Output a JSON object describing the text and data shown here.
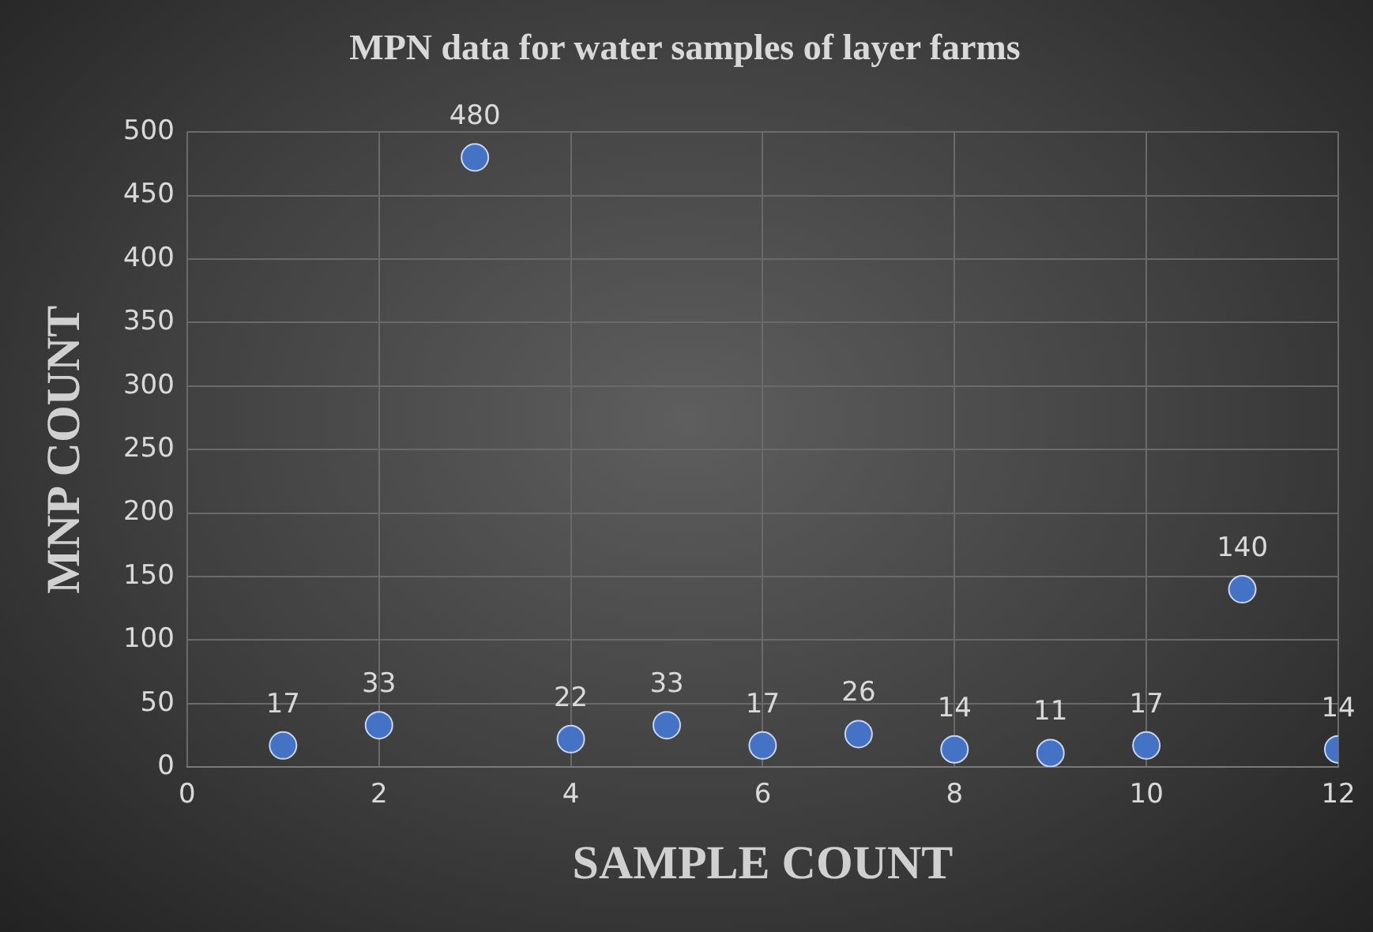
{
  "chart_data": {
    "type": "scatter",
    "title": "MPN data for water samples of layer farms",
    "xlabel": "SAMPLE COUNT",
    "ylabel": "MNP COUNT",
    "x": [
      1,
      2,
      3,
      4,
      5,
      6,
      7,
      8,
      9,
      10,
      11,
      12
    ],
    "values": [
      17,
      33,
      480,
      22,
      33,
      17,
      26,
      14,
      11,
      17,
      140,
      14
    ],
    "color": "#4472c4",
    "marker": "circle",
    "data_labels": true,
    "grid": true,
    "xlim": [
      0,
      12
    ],
    "xticks": [
      0,
      2,
      4,
      6,
      8,
      10,
      12
    ],
    "ylim": [
      0,
      500
    ],
    "yticks": [
      0,
      50,
      100,
      150,
      200,
      250,
      300,
      350,
      400,
      450,
      500
    ]
  }
}
